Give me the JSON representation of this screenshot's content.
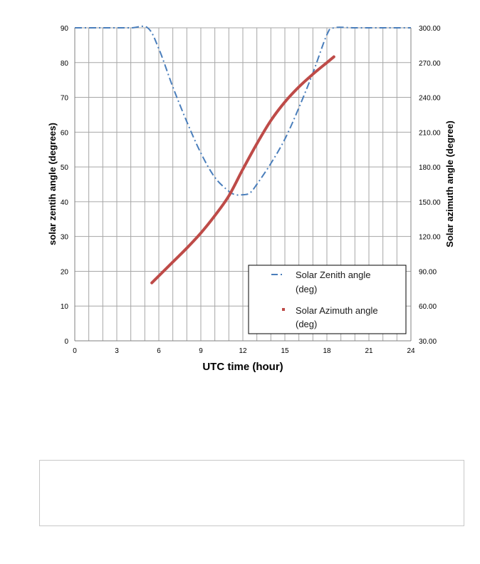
{
  "chart_data": {
    "type": "line",
    "title": "",
    "xlabel": "UTC time (hour)",
    "ylabel_left": "solar zentih angle (degrees)",
    "ylabel_right": "Solar azimuth angle (degree)",
    "xlim": [
      0,
      24
    ],
    "ylim_left": [
      0,
      90
    ],
    "ylim_right": [
      30,
      300
    ],
    "x_ticks": [
      "0",
      "3",
      "6",
      "9",
      "12",
      "15",
      "18",
      "21",
      "24"
    ],
    "y_left_ticks": [
      "0",
      "10",
      "20",
      "30",
      "40",
      "50",
      "60",
      "70",
      "80",
      "90"
    ],
    "y_right_ticks": [
      "30.00",
      "60.00",
      "90.00",
      "120.00",
      "150.00",
      "180.00",
      "210.00",
      "240.00",
      "270.00",
      "300.00"
    ],
    "grid": true,
    "legend_position": "bottom-right",
    "series": [
      {
        "name": "Solar Zenith angle (deg)",
        "axis": "left",
        "style": "dash-dot",
        "color": "#4a7ebb",
        "x": [
          0,
          2,
          4,
          5.2,
          6,
          7,
          8,
          9,
          10,
          11,
          11.5,
          12,
          12.5,
          13,
          14,
          15,
          16,
          17,
          18,
          18.5,
          20,
          22,
          24
        ],
        "y": [
          90,
          90,
          90,
          90,
          84,
          73,
          63,
          54,
          47,
          43,
          42,
          42,
          42.5,
          45,
          51,
          58,
          67,
          77,
          88,
          90,
          90,
          90,
          90
        ]
      },
      {
        "name": "Solar Azimuth angle (deg)",
        "axis": "right",
        "style": "solid",
        "color": "#be4b48",
        "x": [
          5.5,
          6,
          7,
          8,
          9,
          10,
          11,
          12,
          13,
          14,
          15,
          16,
          17,
          18,
          18.5
        ],
        "y": [
          80,
          86,
          98,
          110,
          123,
          138,
          155,
          178,
          200,
          220,
          236,
          249,
          260,
          270,
          275
        ]
      }
    ]
  },
  "legend": {
    "zenith_line1": "Solar Zenith angle",
    "zenith_line2": "(deg)",
    "azimuth_line1": "Solar Azimuth angle",
    "azimuth_line2": "(deg)"
  }
}
